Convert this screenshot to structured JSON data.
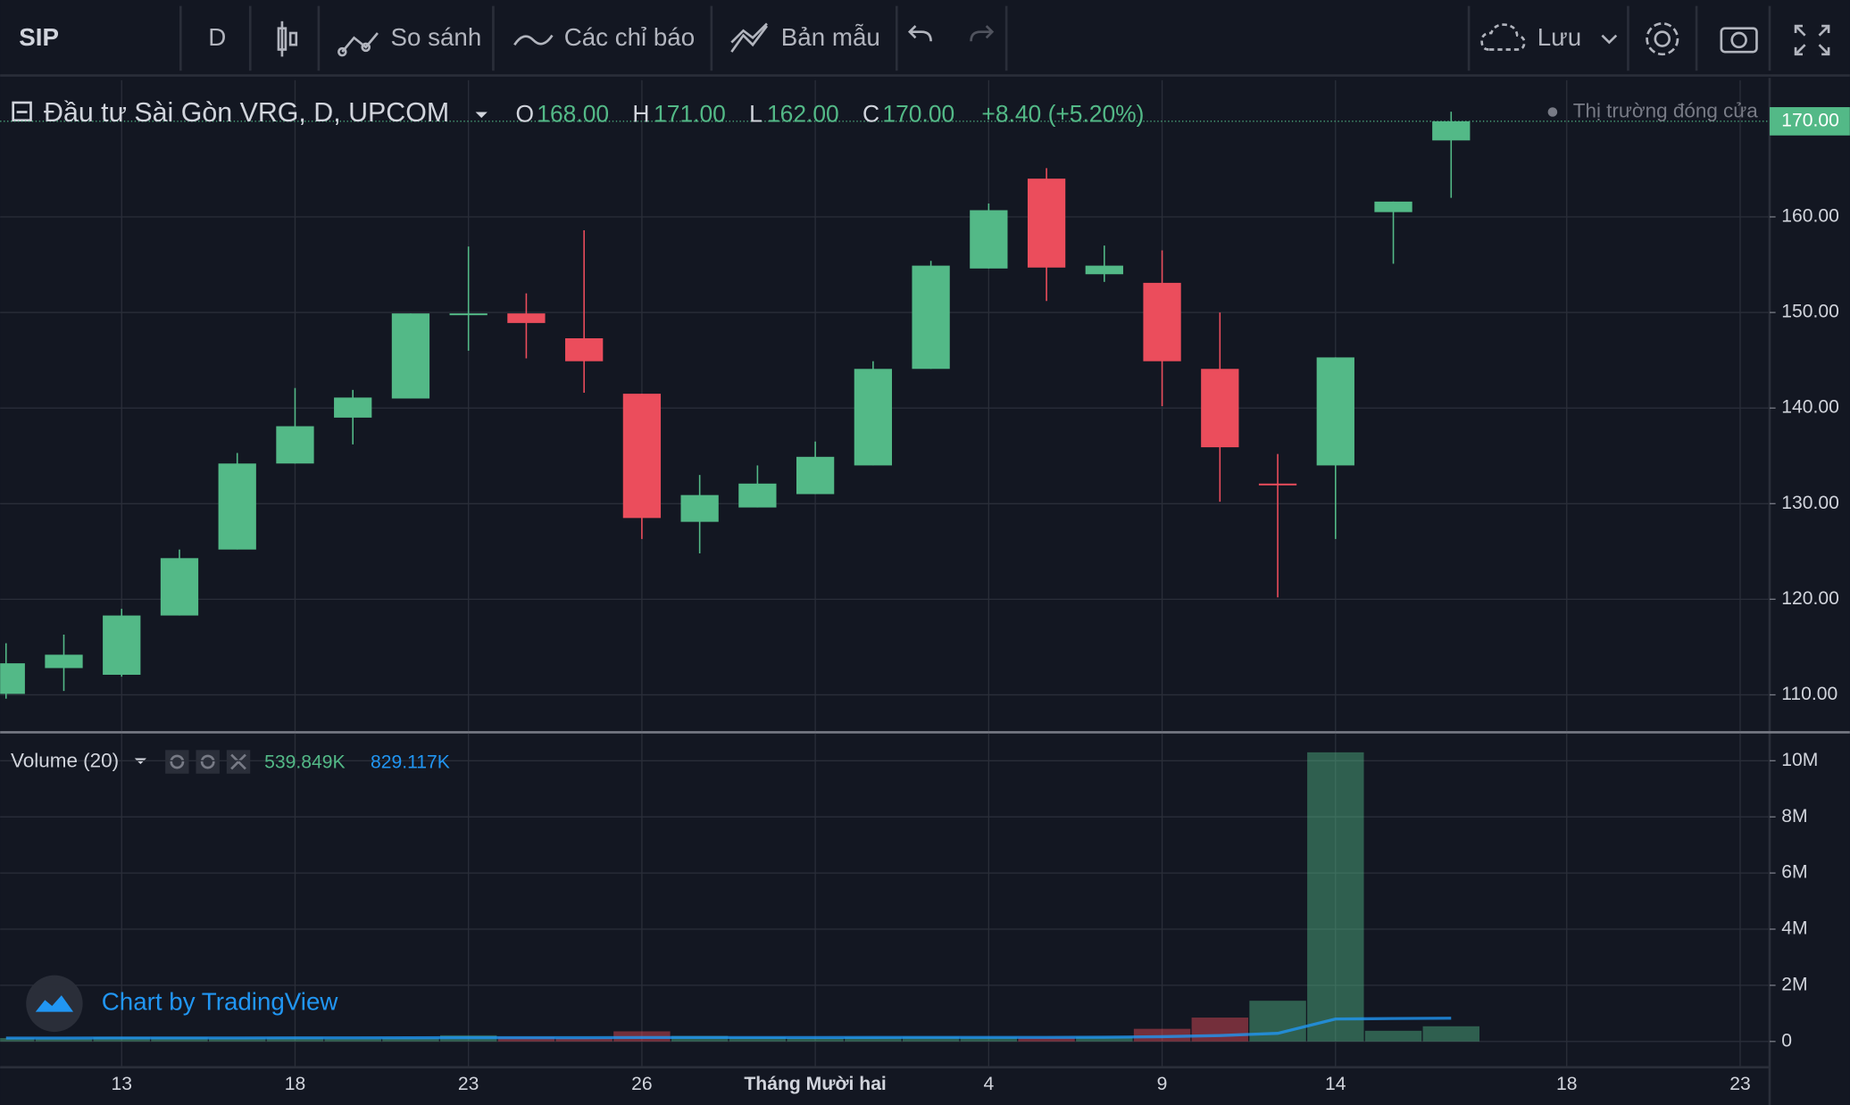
{
  "toolbar": {
    "symbol": "SIP",
    "interval": "D",
    "compare": "So sánh",
    "indicators": "Các chỉ báo",
    "templates": "Bản mẫu",
    "save": "Lưu"
  },
  "watermark": "Chart by TradingView",
  "chart_data": [
    {
      "type": "candlestick",
      "title": "Đầu tư Sài Gòn VRG, D, UPCOM",
      "legend": {
        "o": "O",
        "o_value": "168.00",
        "h": "H",
        "h_value": "171.00",
        "l": "L",
        "l_value": "162.00",
        "c": "C",
        "c_value": "170.00",
        "change": "+8.40 (+5.20%)"
      },
      "status": "Thị trường đóng cửa",
      "last_price": {
        "value": 170,
        "label": "170.00"
      },
      "categories": [
        null,
        null,
        "13",
        null,
        null,
        "18",
        null,
        null,
        "23",
        null,
        null,
        "26",
        null,
        null,
        "Tháng Mười hai",
        null,
        null,
        "4",
        null,
        null,
        "9",
        null,
        null,
        "14",
        null,
        null,
        null,
        "18",
        null,
        null,
        "23"
      ],
      "open": [
        110.1,
        112.8,
        112.1,
        118.3,
        125.2,
        134.2,
        139.0,
        141.0,
        149.9,
        149.9,
        147.3,
        141.5,
        128.1,
        129.6,
        131.0,
        134.0,
        144.1,
        154.6,
        164.0,
        154.0,
        153.1,
        144.1,
        132.1,
        134.0,
        160.5,
        168,
        null,
        null,
        null,
        null,
        null
      ],
      "high": [
        115.4,
        116.3,
        119.0,
        125.2,
        135.3,
        142.1,
        141.9,
        149.9,
        156.9,
        152.0,
        158.6,
        141.5,
        133.0,
        134.0,
        136.5,
        144.9,
        155.4,
        161.4,
        165.1,
        157.0,
        156.5,
        150.0,
        135.2,
        145.3,
        161.6,
        171,
        null,
        null,
        null,
        null,
        null
      ],
      "low": [
        109.6,
        110.4,
        111.9,
        118.3,
        125.2,
        134.2,
        136.2,
        141.0,
        146.0,
        145.2,
        141.6,
        126.3,
        124.8,
        129.6,
        131.0,
        134.0,
        144.1,
        154.6,
        151.2,
        153.2,
        140.2,
        130.2,
        120.2,
        126.3,
        155.1,
        162,
        null,
        null,
        null,
        null,
        null
      ],
      "close": [
        113.3,
        114.2,
        118.3,
        124.3,
        134.2,
        138.1,
        141.1,
        149.9,
        149.9,
        148.9,
        144.9,
        128.5,
        130.9,
        132.1,
        134.9,
        144.1,
        154.9,
        160.7,
        154.7,
        154.9,
        144.9,
        135.9,
        132.1,
        145.3,
        161.6,
        170,
        null,
        null,
        null,
        null,
        null
      ],
      "up_color": "#53b987",
      "down_color": "#eb4d5c",
      "ylim": [
        106.2,
        174.3
      ],
      "yticks": [
        {
          "value": 110,
          "label": "110.00"
        },
        {
          "value": 120,
          "label": "120.00"
        },
        {
          "value": 130,
          "label": "130.00"
        },
        {
          "value": 140,
          "label": "140.00"
        },
        {
          "value": 150,
          "label": "150.00"
        },
        {
          "value": 160,
          "label": "160.00"
        }
      ],
      "grid": true
    },
    {
      "type": "bar",
      "title": "Volume (20)",
      "values": [
        120000,
        100000,
        150000,
        140000,
        120000,
        130000,
        100000,
        120000,
        220000,
        150000,
        120000,
        360000,
        200000,
        150000,
        120000,
        150000,
        160000,
        140000,
        130000,
        160000,
        450000,
        850000,
        1450000,
        10300000,
        380000,
        539849,
        null,
        null,
        null,
        null,
        null
      ],
      "last_value_label": "539.849K",
      "ma_values": [
        120000,
        120000,
        125000,
        125000,
        125000,
        128000,
        128000,
        130000,
        135000,
        135000,
        135000,
        140000,
        140000,
        140000,
        140000,
        142000,
        145000,
        145000,
        145000,
        150000,
        170000,
        210000,
        290000,
        800000,
        815000,
        829117,
        null,
        null,
        null,
        null,
        null
      ],
      "ma_last_label": "829.117K",
      "ma_color": "#2196f3",
      "opacity": 0.45,
      "ylim": [
        -920000,
        10970000
      ],
      "yticks": [
        0,
        {
          "value": 2000000,
          "label": "2M"
        },
        {
          "value": 4000000,
          "label": "4M"
        },
        {
          "value": 6000000,
          "label": "6M"
        },
        {
          "value": 8000000,
          "label": "8M"
        },
        {
          "value": 10000000,
          "label": "10M"
        }
      ],
      "grid": true
    }
  ]
}
